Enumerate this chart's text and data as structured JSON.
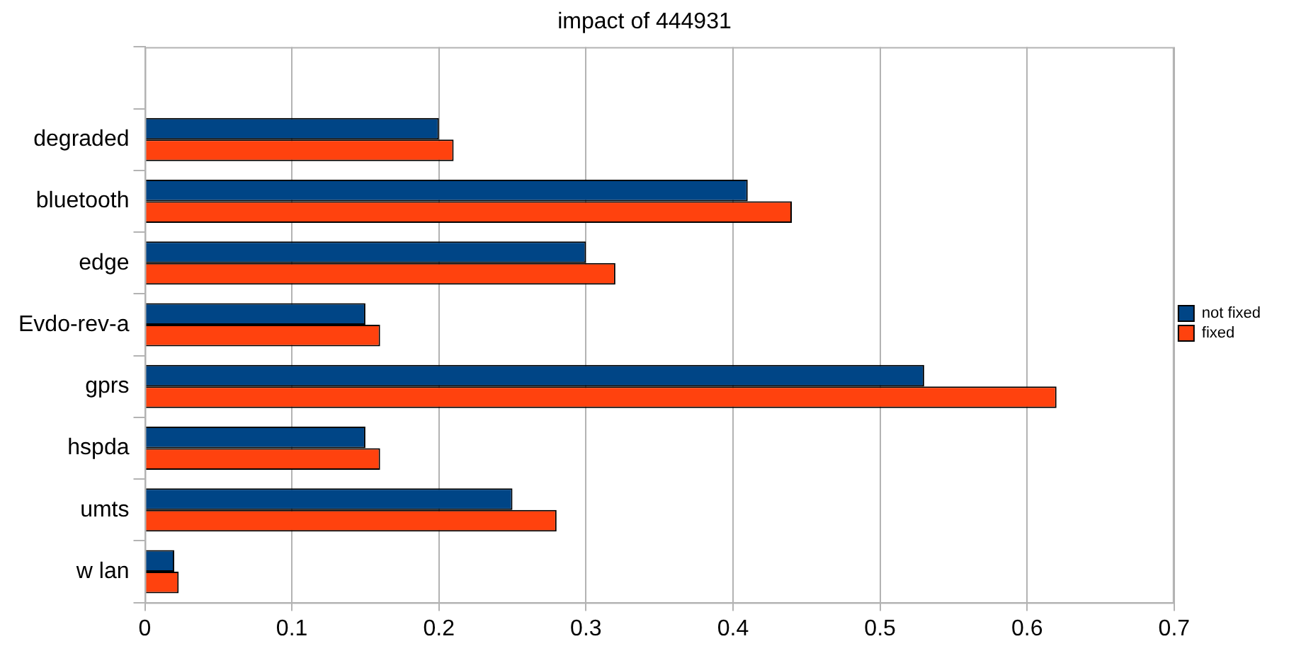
{
  "chart_data": {
    "type": "bar",
    "orientation": "horizontal",
    "title": "impact of 444931",
    "categories": [
      null,
      "degraded",
      "bluetooth",
      "edge",
      "Evdo-rev-a",
      "gprs",
      "hspda",
      "umts",
      "w lan"
    ],
    "series": [
      {
        "name": "not fixed",
        "color": "#004586",
        "values": [
          null,
          0.2,
          0.41,
          0.3,
          0.15,
          0.53,
          0.15,
          0.25,
          0.02
        ]
      },
      {
        "name": "fixed",
        "color": "#ff420e",
        "values": [
          null,
          0.21,
          0.44,
          0.32,
          0.16,
          0.62,
          0.16,
          0.28,
          0.023
        ]
      }
    ],
    "xlim": [
      0,
      0.7
    ],
    "xticks": [
      0,
      0.1,
      0.2,
      0.3,
      0.4,
      0.5,
      0.6,
      0.7
    ],
    "grid": "x",
    "legend": "right"
  }
}
